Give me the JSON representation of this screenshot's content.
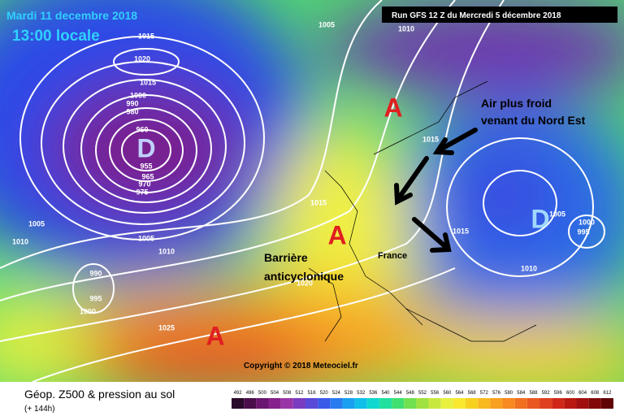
{
  "header": {
    "date": "Mardi 11 decembre 2018",
    "time": "13:00 locale",
    "run": "Run GFS 12 Z du Mercredi 5 décembre 2018"
  },
  "annotations": {
    "cold_air": [
      "Air plus froid",
      "venant du Nord Est"
    ],
    "barrier": [
      "Barrière",
      "anticyclonique"
    ],
    "france": "France"
  },
  "pressure_centers": [
    "D",
    "A",
    "A",
    "A",
    "D"
  ],
  "isobar_labels": [
    "1015",
    "1020",
    "1015",
    "1000",
    "990",
    "980",
    "960",
    "955",
    "965",
    "970",
    "975",
    "1005",
    "1010",
    "1005",
    "1010",
    "990",
    "995",
    "1000",
    "1025",
    "1020",
    "1015",
    "1005",
    "1010",
    "1015",
    "1005",
    "1000",
    "995",
    "1010",
    "1015"
  ],
  "copyright": "Copyright © 2018 Meteociel.fr",
  "legend": {
    "title": "Géop. Z500 & pression au sol",
    "lead": "(+ 144h)",
    "ticks": [
      492,
      496,
      500,
      504,
      508,
      512,
      516,
      520,
      524,
      528,
      532,
      536,
      540,
      544,
      548,
      552,
      556,
      560,
      564,
      568,
      572,
      576,
      580,
      584,
      588,
      592,
      596,
      600,
      604,
      608,
      612
    ],
    "colors": [
      "#2a0a2a",
      "#4a0f4a",
      "#6a1570",
      "#85208c",
      "#9a35a8",
      "#7a3cc0",
      "#5a4ad8",
      "#3a5ae8",
      "#2a7af0",
      "#1aa0f0",
      "#10c0e8",
      "#10d8d0",
      "#20e0a0",
      "#40e070",
      "#70e050",
      "#a0e040",
      "#c8e840",
      "#e8f040",
      "#f8e830",
      "#f8d020",
      "#f8b820",
      "#f8a020",
      "#f88820",
      "#f07020",
      "#e85820",
      "#e04020",
      "#d02818",
      "#b81810",
      "#a01010",
      "#800808",
      "#600404"
    ]
  }
}
